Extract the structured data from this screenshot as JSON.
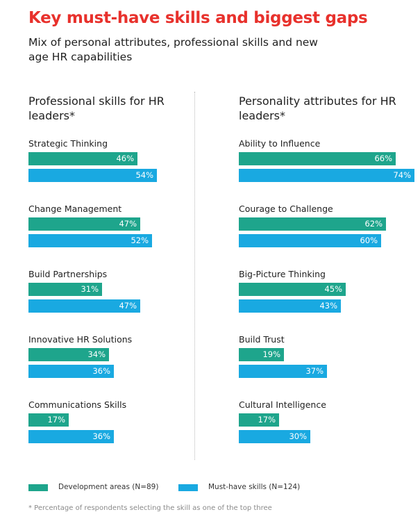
{
  "title": "Key must-have skills and biggest gaps",
  "subtitle": "Mix of personal attributes, professional skills and new age HR capabilities",
  "colors": {
    "development": "#1ea58c",
    "must_have": "#19a9e1",
    "title": "#e8312c"
  },
  "legend": {
    "development": "Development areas (N=89)",
    "must_have": "Must-have skills (N=124)"
  },
  "footnote": "* Percentage of respondents selecting the skill as one of the top three",
  "chart_data": [
    {
      "type": "bar",
      "title": "Professional skills for HR leaders*",
      "categories": [
        "Strategic Thinking",
        "Change Management",
        "Build Partnerships",
        "Innovative HR Solutions",
        "Communications Skills"
      ],
      "series": [
        {
          "name": "Development areas (N=89)",
          "values": [
            46,
            47,
            31,
            34,
            17
          ]
        },
        {
          "name": "Must-have skills (N=124)",
          "values": [
            54,
            52,
            47,
            36,
            36
          ]
        }
      ],
      "labels": {
        "development": [
          "46%",
          "47%",
          "31%",
          "34%",
          "17%"
        ],
        "must_have": [
          "54%",
          "52%",
          "47%",
          "36%",
          "36%"
        ]
      },
      "legend": "bottom"
    },
    {
      "type": "bar",
      "title": "Personality attributes for HR leaders*",
      "categories": [
        "Ability to Influence",
        "Courage to Challenge",
        "Big-Picture Thinking",
        "Build Trust",
        "Cultural Intelligence"
      ],
      "series": [
        {
          "name": "Development areas (N=89)",
          "values": [
            66,
            62,
            45,
            19,
            17
          ]
        },
        {
          "name": "Must-have skills (N=124)",
          "values": [
            74,
            60,
            43,
            37,
            30
          ]
        }
      ],
      "labels": {
        "development": [
          "66%",
          "62%",
          "45%",
          "19%",
          "17%"
        ],
        "must_have": [
          "74%",
          "60%",
          "43%",
          "37%",
          "30%"
        ]
      },
      "legend": "bottom"
    }
  ]
}
